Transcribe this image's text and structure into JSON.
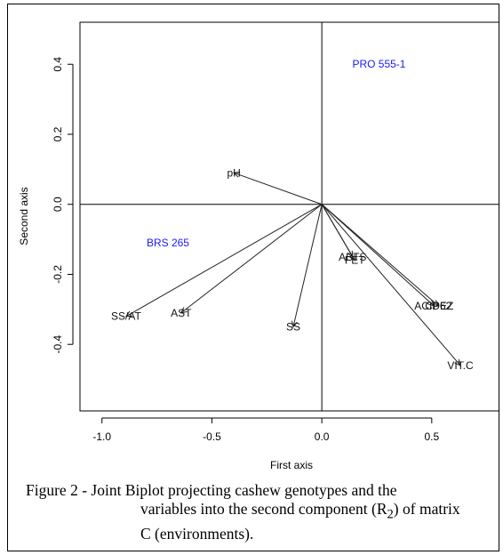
{
  "chart_data": {
    "type": "scatter",
    "title": "",
    "xlabel": "First axis",
    "ylabel": "Second axis",
    "xlim": [
      -1.1,
      0.82
    ],
    "ylim": [
      -0.59,
      0.52
    ],
    "xticks": [
      -1.0,
      -0.5,
      0.0,
      0.5
    ],
    "xtick_labels": [
      "-1.0",
      "-0.5",
      "0.0",
      "0.5"
    ],
    "yticks": [
      0.4,
      0.2,
      0.0,
      -0.2,
      -0.4
    ],
    "ytick_labels": [
      "0.4",
      "0.2",
      "0.0",
      "-0.2",
      "-0.4"
    ],
    "variables": [
      {
        "label": "pH",
        "x": -0.4,
        "y": 0.09
      },
      {
        "label": "SS/AT",
        "x": -0.89,
        "y": -0.32
      },
      {
        "label": "AST",
        "x": -0.64,
        "y": -0.31
      },
      {
        "label": "SS",
        "x": -0.13,
        "y": -0.35
      },
      {
        "label": "ABTS",
        "x": 0.14,
        "y": -0.15
      },
      {
        "label": "FET",
        "x": 0.15,
        "y": -0.16
      },
      {
        "label": "ACIDEZ",
        "x": 0.51,
        "y": -0.29
      },
      {
        "label": "CP62",
        "x": 0.53,
        "y": -0.29
      },
      {
        "label": "VIT.C",
        "x": 0.63,
        "y": -0.46
      }
    ],
    "genotypes": [
      {
        "label": "PRO 555-1",
        "x": 0.26,
        "y": 0.4
      },
      {
        "label": "BRS 265",
        "x": -0.7,
        "y": -0.11
      }
    ],
    "colors": {
      "variables": "#222222",
      "genotypes": "#1a1aff",
      "axes": "#000000"
    }
  },
  "caption": {
    "lead": "Figure 2 - ",
    "line1_rest": "Joint Biplot projecting cashew genotypes and the",
    "line2_pre": "variables into the second component (R",
    "line2_sub": "2",
    "line2_post": ") of matrix",
    "line3": "C (environments)."
  }
}
